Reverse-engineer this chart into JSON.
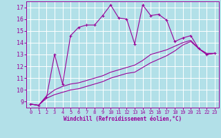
{
  "xlabel": "Windchill (Refroidissement éolien,°C)",
  "xlim": [
    -0.5,
    23.5
  ],
  "ylim": [
    8.5,
    17.5
  ],
  "yticks": [
    9,
    10,
    11,
    12,
    13,
    14,
    15,
    16,
    17
  ],
  "xticks": [
    0,
    1,
    2,
    3,
    4,
    5,
    6,
    7,
    8,
    9,
    10,
    11,
    12,
    13,
    14,
    15,
    16,
    17,
    18,
    19,
    20,
    21,
    22,
    23
  ],
  "line_color": "#990099",
  "bg_color": "#b2e0e8",
  "grid_color": "#ffffff",
  "series1_x": [
    0,
    1,
    2,
    3,
    4,
    5,
    6,
    7,
    8,
    9,
    10,
    11,
    12,
    13,
    14,
    15,
    16,
    17,
    18,
    19,
    20,
    21,
    22,
    23
  ],
  "series1_y": [
    8.8,
    8.7,
    9.4,
    13.0,
    10.5,
    14.6,
    15.3,
    15.5,
    15.5,
    16.3,
    17.2,
    16.1,
    16.0,
    13.9,
    17.2,
    16.3,
    16.4,
    15.9,
    14.1,
    14.4,
    14.6,
    13.5,
    13.0,
    13.1
  ],
  "series2_x": [
    0,
    1,
    2,
    3,
    4,
    5,
    6,
    7,
    8,
    9,
    10,
    11,
    12,
    13,
    14,
    15,
    16,
    17,
    18,
    19,
    20,
    21,
    22,
    23
  ],
  "series2_y": [
    8.8,
    8.7,
    9.5,
    10.0,
    10.3,
    10.5,
    10.6,
    10.8,
    11.0,
    11.2,
    11.5,
    11.7,
    11.9,
    12.1,
    12.5,
    13.0,
    13.2,
    13.4,
    13.7,
    14.0,
    14.2,
    13.5,
    13.1,
    13.1
  ],
  "series3_x": [
    0,
    1,
    2,
    3,
    4,
    5,
    6,
    7,
    8,
    9,
    10,
    11,
    12,
    13,
    14,
    15,
    16,
    17,
    18,
    19,
    20,
    21,
    22,
    23
  ],
  "series3_y": [
    8.8,
    8.7,
    9.3,
    9.6,
    9.8,
    10.0,
    10.1,
    10.3,
    10.5,
    10.7,
    11.0,
    11.2,
    11.4,
    11.5,
    11.9,
    12.3,
    12.6,
    12.9,
    13.3,
    13.8,
    14.1,
    13.5,
    13.0,
    13.1
  ]
}
